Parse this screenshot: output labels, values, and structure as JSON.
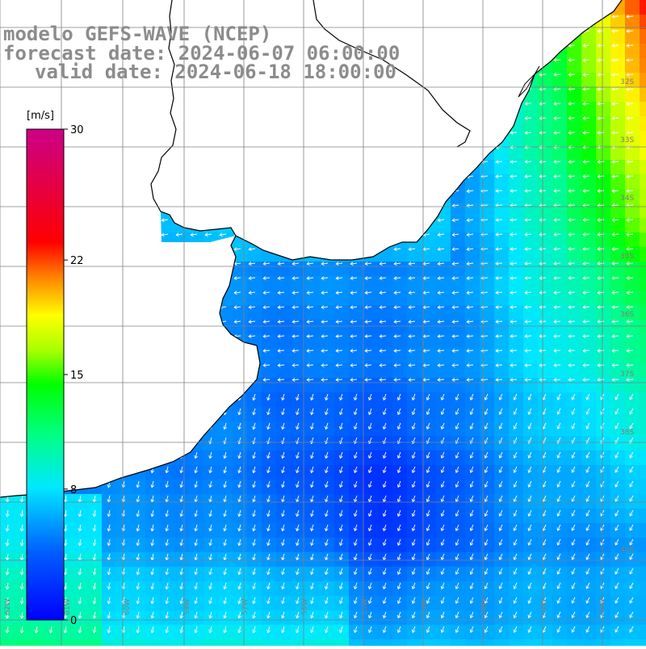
{
  "header": {
    "line1": "modelo GEFS-WAVE (NCEP)",
    "line2": "forecast date: 2024-06-07 06:00:00",
    "line3": "valid date: 2024-06-18 18:00:00"
  },
  "colorbar": {
    "unit": "[m/s]",
    "ticks": [
      "30",
      "22",
      "15",
      "8",
      "0"
    ],
    "tick_values": [
      30,
      22,
      15,
      8,
      0
    ],
    "min": 0,
    "max": 30
  },
  "latitude_labels": [
    "32S",
    "33S",
    "34S",
    "35S",
    "36S",
    "37S",
    "38S",
    "40S"
  ],
  "longitude_labels": [
    "62W",
    "61W",
    "60W",
    "59W",
    "57W",
    "56W",
    "55W",
    "54W",
    "53W",
    "52W",
    "51W"
  ],
  "colors": {
    "land": "#ffffff",
    "coastline": "#000000",
    "grid": "#808080",
    "arrows": "#ffffff",
    "header_text": "#8c8c8c"
  }
}
